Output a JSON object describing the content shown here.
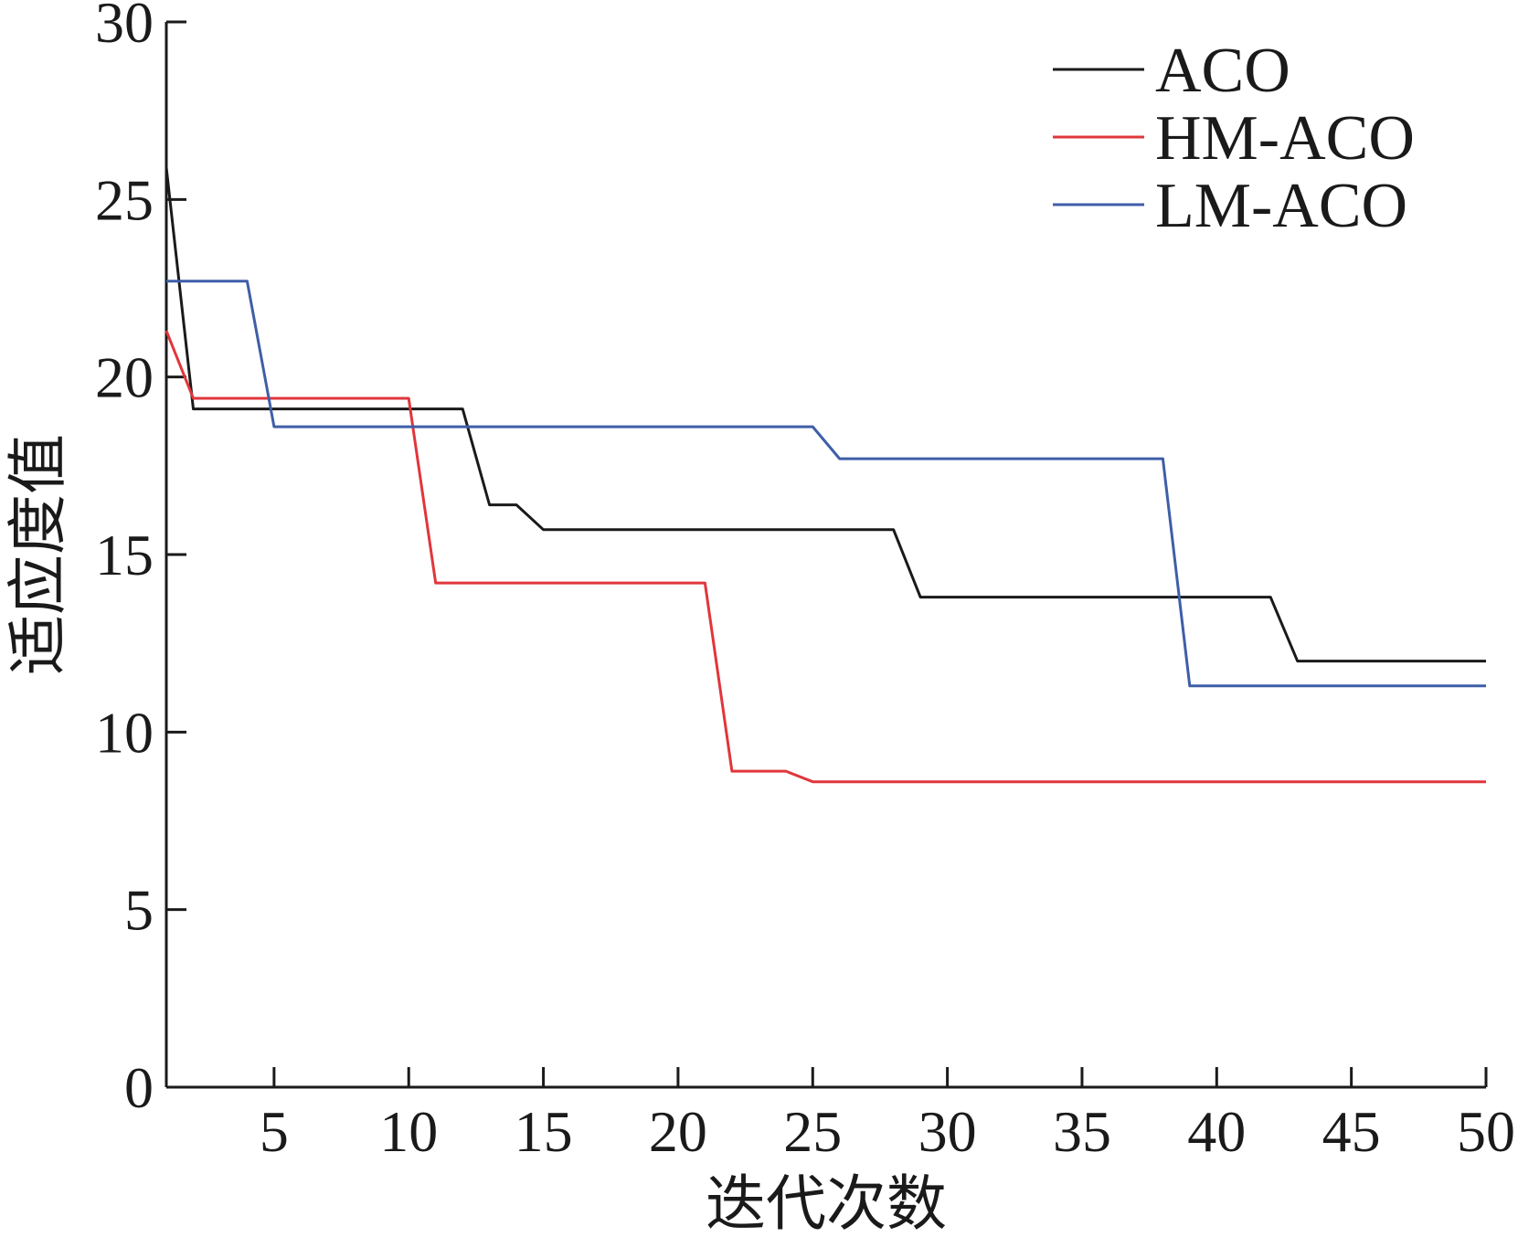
{
  "chart_data": {
    "type": "line",
    "title": "",
    "xlabel": "迭代次数",
    "ylabel": "适应度值",
    "xlim": [
      1,
      50
    ],
    "ylim": [
      0,
      30
    ],
    "xticks": [
      5,
      10,
      15,
      20,
      25,
      30,
      35,
      40,
      45,
      50
    ],
    "yticks": [
      0,
      5,
      10,
      15,
      20,
      25,
      30
    ],
    "grid": false,
    "legend_position": "top-right",
    "series": [
      {
        "name": "ACO",
        "color": "#1a1a1a",
        "x": [
          1,
          2,
          12,
          13,
          14,
          15,
          28,
          29,
          42,
          43,
          50
        ],
        "y": [
          25.9,
          19.1,
          19.1,
          16.4,
          16.4,
          15.7,
          15.7,
          13.8,
          13.8,
          12.0,
          12.0
        ]
      },
      {
        "name": "HM-ACO",
        "color": "#e0363b",
        "x": [
          1,
          2,
          10,
          11,
          21,
          22,
          24,
          25,
          50
        ],
        "y": [
          21.3,
          19.4,
          19.4,
          14.2,
          14.2,
          8.9,
          8.9,
          8.6,
          8.6
        ]
      },
      {
        "name": "LM-ACO",
        "color": "#3f5ea8",
        "x": [
          1,
          4,
          5,
          25,
          26,
          38,
          39,
          50
        ],
        "y": [
          22.7,
          22.7,
          18.6,
          18.6,
          17.7,
          17.7,
          11.3,
          11.3
        ]
      }
    ]
  }
}
